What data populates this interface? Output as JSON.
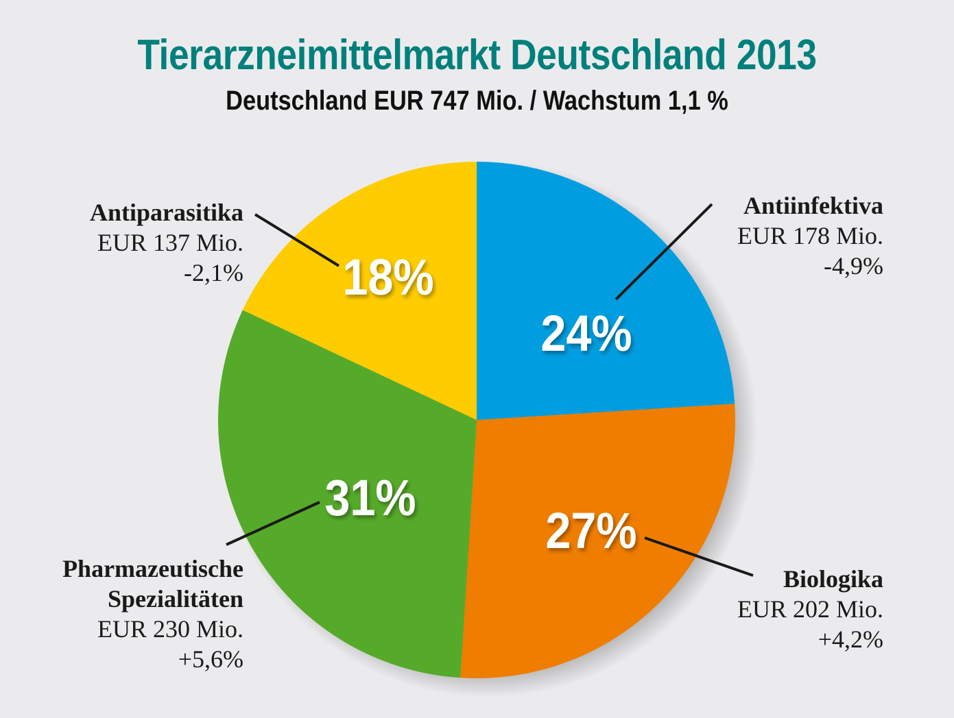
{
  "chart_data": {
    "type": "pie",
    "title": "Tierarzneimittelmarkt Deutschland 2013",
    "subtitle": "Deutschland EUR 747 Mio. / Wachstum 1,1 %",
    "unit": "EUR Mio.",
    "start": "top",
    "direction": "clockwise",
    "slices": [
      {
        "name": "Antiinfektiva",
        "value": 178,
        "percent": 24,
        "percent_label": "24%",
        "value_label": "EUR 178 Mio.",
        "growth_label": "-4,9%",
        "growth": -4.9,
        "color": "#009ee0"
      },
      {
        "name": "Biologika",
        "value": 202,
        "percent": 27,
        "percent_label": "27%",
        "value_label": "EUR 202 Mio.",
        "growth_label": "+4,2%",
        "growth": 4.2,
        "color": "#ef7d00"
      },
      {
        "name": "Pharmazeutische Spezialitäten",
        "name_lines": [
          "Pharmazeutische",
          "Spezialitäten"
        ],
        "value": 230,
        "percent": 31,
        "percent_label": "31%",
        "value_label": "EUR 230 Mio.",
        "growth_label": "+5,6%",
        "growth": 5.6,
        "color": "#56aa2a"
      },
      {
        "name": "Antiparasitika",
        "value": 137,
        "percent": 18,
        "percent_label": "18%",
        "value_label": "EUR 137 Mio.",
        "growth_label": "-2,1%",
        "growth": -2.1,
        "color": "#ffcc00"
      }
    ],
    "total": {
      "value": 747,
      "growth": 1.1
    }
  },
  "colors": {
    "title": "#00807c",
    "background": "#ebebed"
  }
}
